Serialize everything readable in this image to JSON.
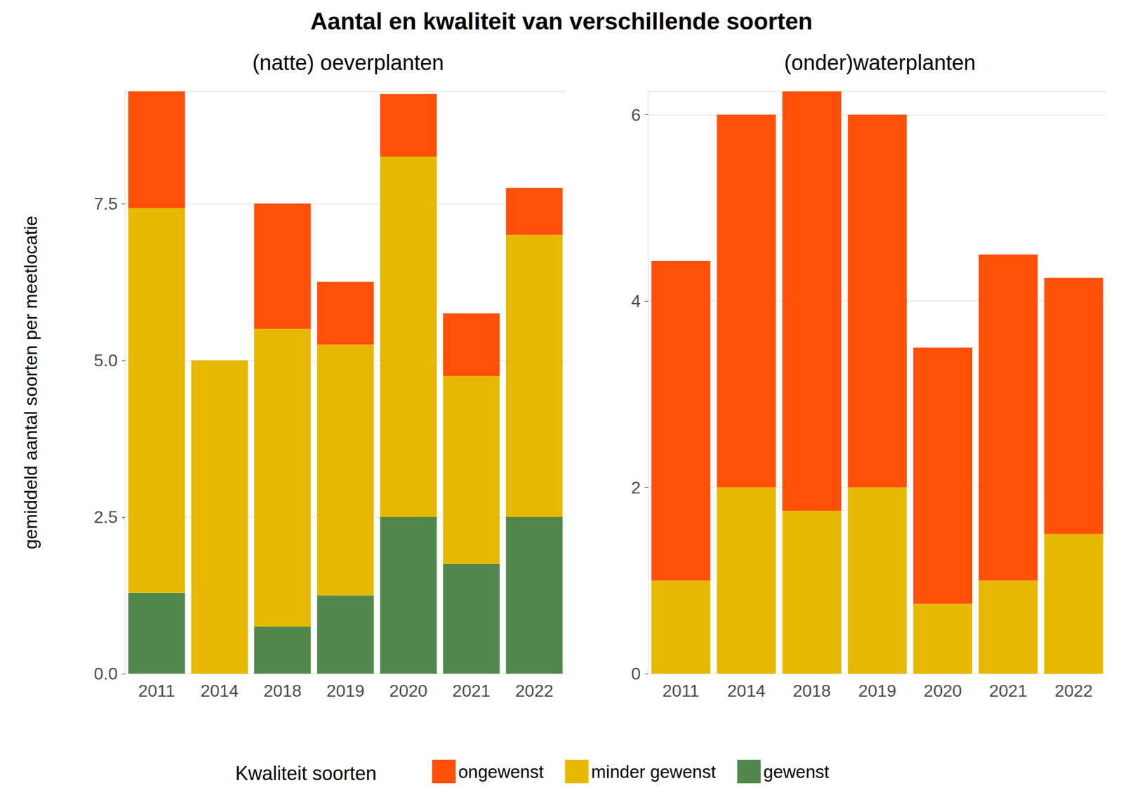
{
  "title": "Aantal en kwaliteit van verschillende soorten",
  "legend_title": "Kwaliteit soorten",
  "chart_data": [
    {
      "type": "bar",
      "title": "(natte) oeverplanten",
      "ylabel": "gemiddeld aantal soorten per meetlocatie",
      "categories": [
        "2011",
        "2014",
        "2018",
        "2019",
        "2020",
        "2021",
        "2022"
      ],
      "series": [
        {
          "name": "ongewenst",
          "color": "#FF500A",
          "values": [
            1.86,
            0,
            2.0,
            1.0,
            1.0,
            1.0,
            0.75
          ]
        },
        {
          "name": "minder gewenst",
          "color": "#E6B800",
          "values": [
            6.14,
            5.0,
            4.75,
            4.0,
            5.75,
            3.0,
            4.5
          ]
        },
        {
          "name": "gewenst",
          "color": "#52884E",
          "values": [
            1.29,
            0,
            0.75,
            1.25,
            2.5,
            1.75,
            2.5
          ]
        }
      ],
      "ylim": [
        0,
        9.29
      ],
      "yticks": [
        {
          "value": 0,
          "label": "0.0"
        },
        {
          "value": 2.5,
          "label": "2.5"
        },
        {
          "value": 5,
          "label": "5.0"
        },
        {
          "value": 7.5,
          "label": "7.5"
        }
      ],
      "stacked": true,
      "grid": true,
      "legend": "bottom"
    },
    {
      "type": "bar",
      "title": "(onder)waterplanten",
      "categories": [
        "2011",
        "2014",
        "2018",
        "2019",
        "2020",
        "2021",
        "2022"
      ],
      "series": [
        {
          "name": "ongewenst",
          "color": "#FF500A",
          "values": [
            3.43,
            4.0,
            4.5,
            4.0,
            2.75,
            3.5,
            2.75
          ]
        },
        {
          "name": "minder gewenst",
          "color": "#E6B800",
          "values": [
            1.0,
            2.0,
            1.75,
            2.0,
            0.75,
            1.0,
            1.5
          ]
        }
      ],
      "ylim": [
        0,
        6.25
      ],
      "yticks": [
        0,
        2,
        4,
        6
      ],
      "stacked": true,
      "grid": true,
      "legend": "bottom"
    }
  ]
}
